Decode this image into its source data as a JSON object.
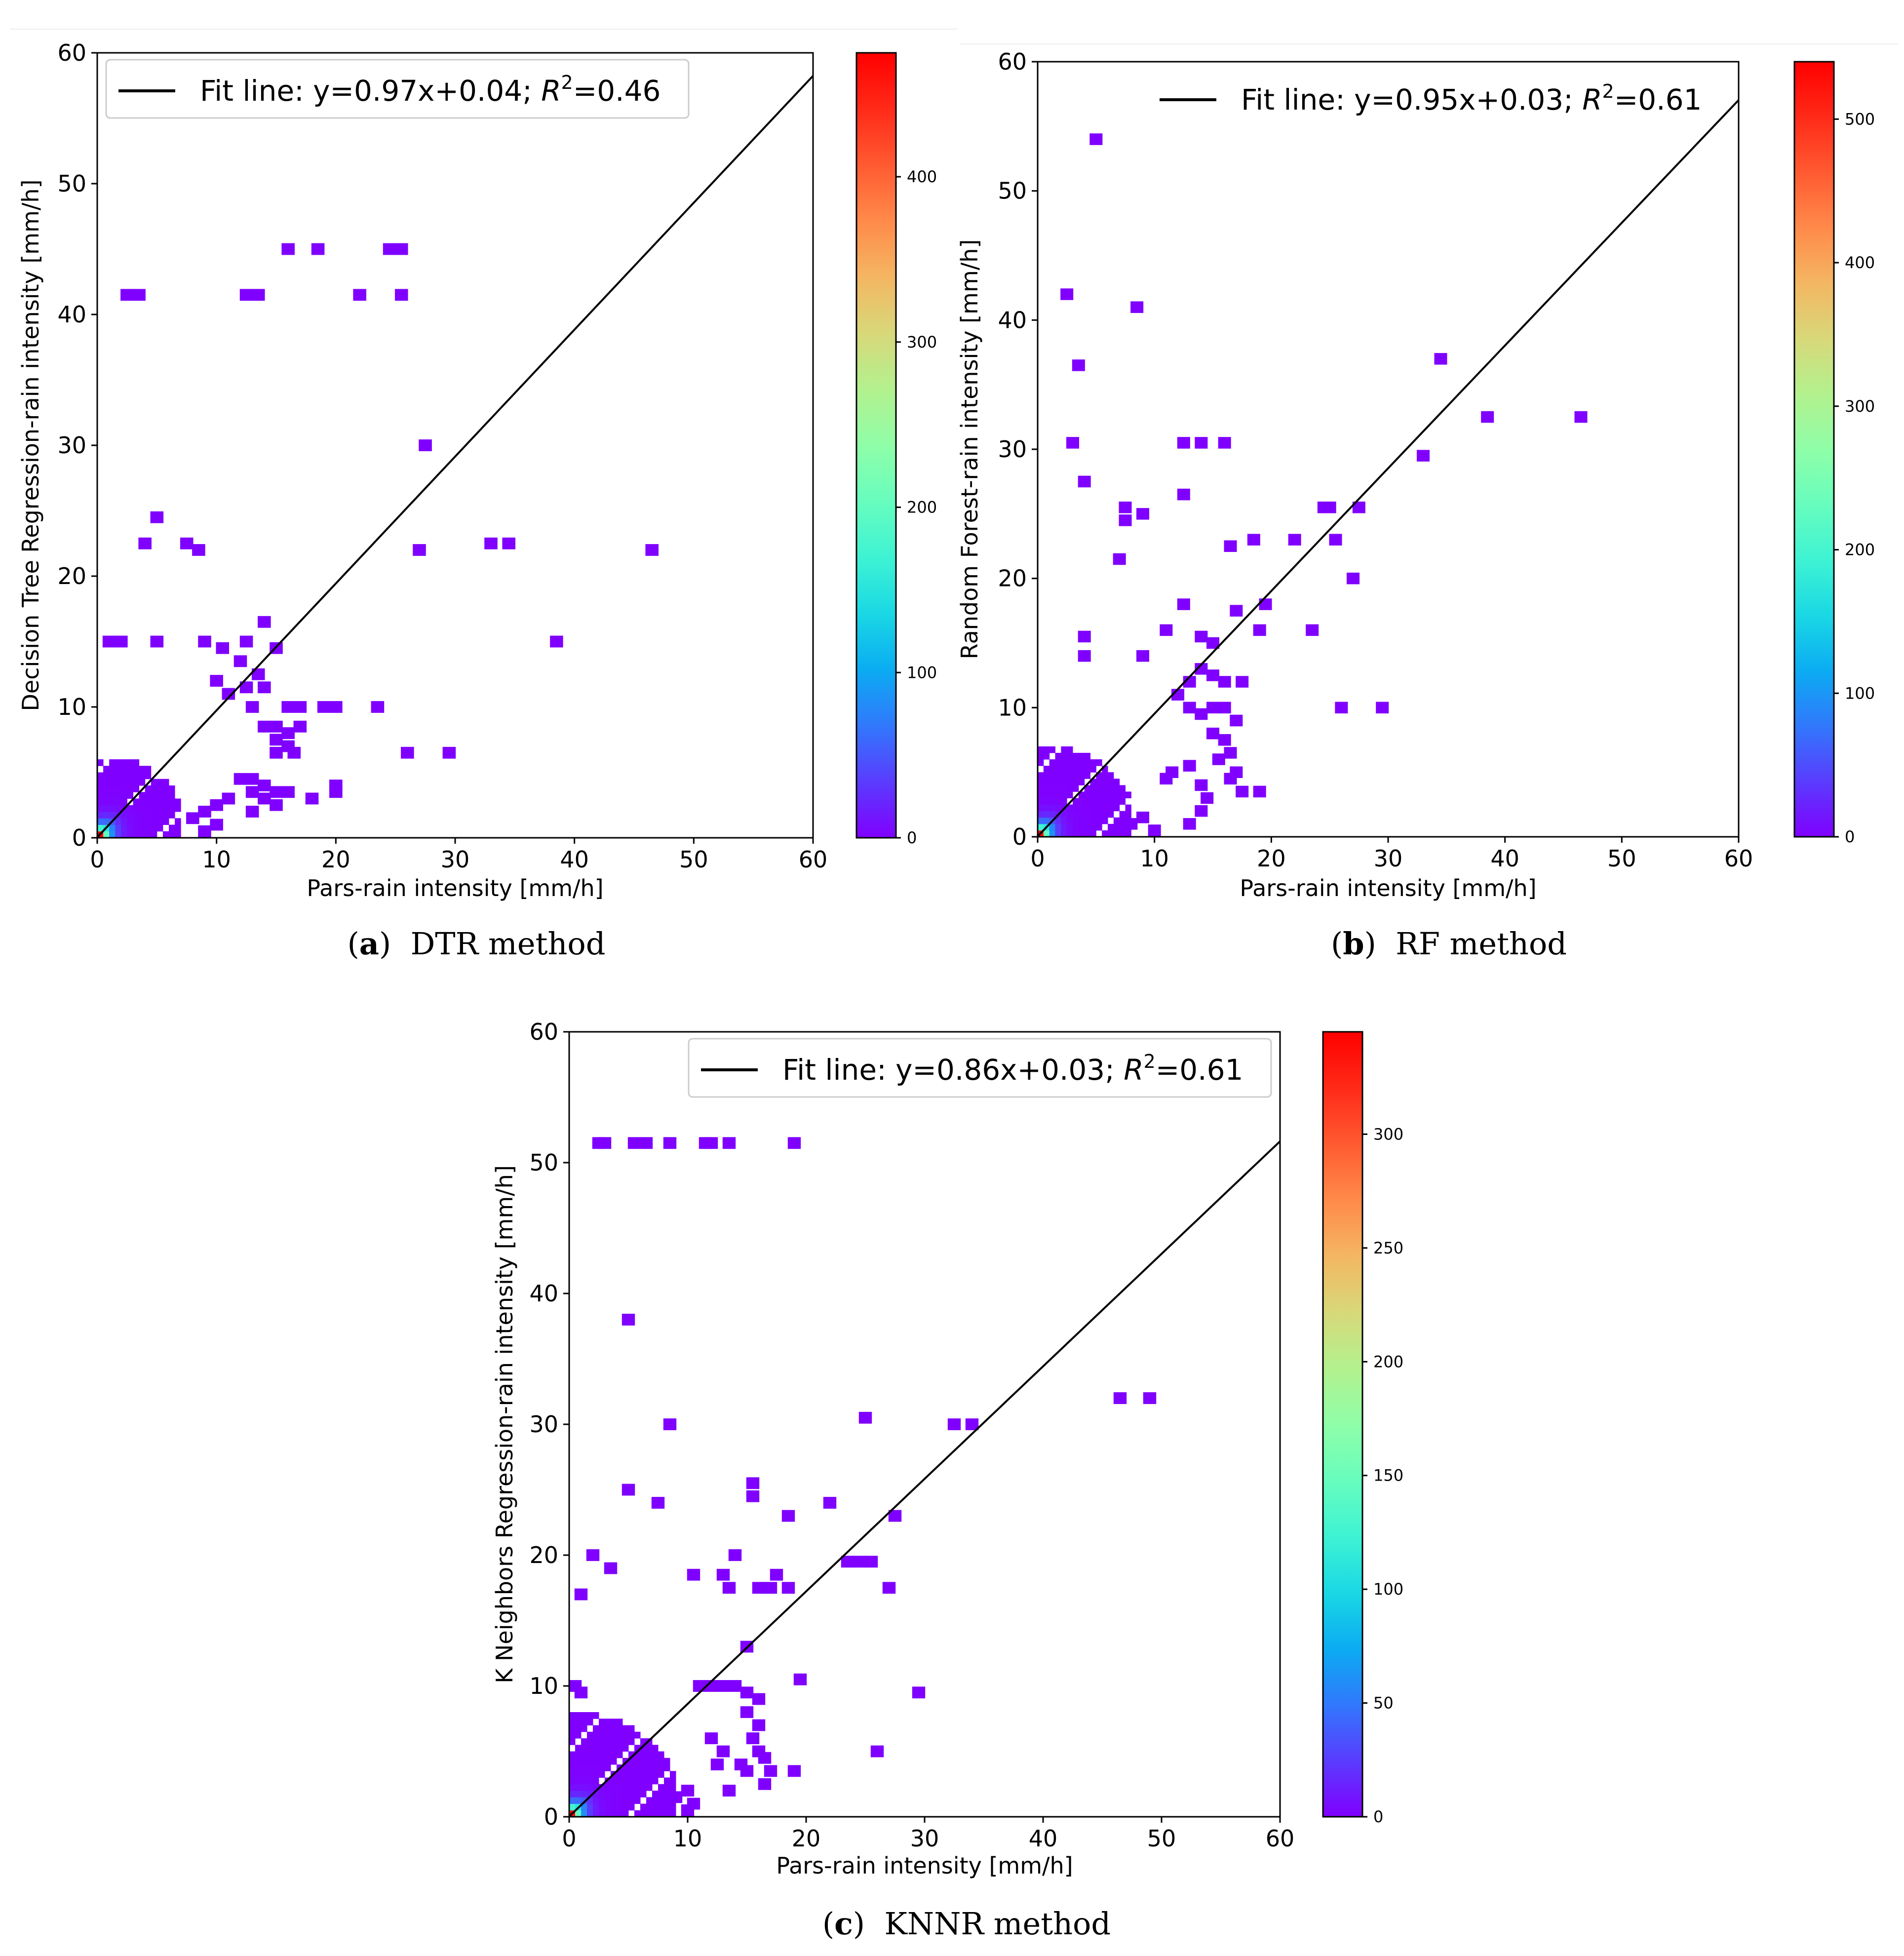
{
  "figure": {
    "colorbar_colors": [
      "#8000ff",
      "#5a3cfe",
      "#3178fc",
      "#0bacf2",
      "#1ad8e4",
      "#3ef3d3",
      "#67fdbe",
      "#8ffea8",
      "#b3f18e",
      "#d8d879",
      "#f4b662",
      "#ff8a4a",
      "#ff5a31",
      "#ff2a18",
      "#ff0000"
    ]
  },
  "chart_data": [
    {
      "id": "a",
      "type": "heatmap",
      "caption_letter": "a",
      "caption_text": "DTR method",
      "xlabel": "Pars-rain intensity [mm/h]",
      "ylabel": "Decision Tree Regression-rain intensity [mm/h]",
      "xlim": [
        0,
        60
      ],
      "ylim": [
        0,
        60
      ],
      "xticks": [
        "0",
        "10",
        "20",
        "30",
        "40",
        "50",
        "60"
      ],
      "yticks": [
        "0",
        "10",
        "20",
        "30",
        "40",
        "50",
        "60"
      ],
      "fit": {
        "slope": 0.97,
        "intercept": 0.04
      },
      "legend": {
        "prefix": "Fit line: y=0.97x+0.04; ",
        "r2_symbol": "R",
        "r2_sup": "2",
        "r2_value": "=0.46",
        "placement": "upper-left"
      },
      "colorbar": {
        "max": 475,
        "ticks": [
          0,
          100,
          200,
          300,
          400
        ],
        "tick_labels": [
          "0",
          "100",
          "200",
          "300",
          "400"
        ]
      },
      "dense_cluster": {
        "x_max": 7,
        "y_max": 6,
        "peak_count": 475
      },
      "sparse_points": [
        [
          2.5,
          41.5
        ],
        [
          3.5,
          41.5
        ],
        [
          12.5,
          41.5
        ],
        [
          13.5,
          41.5
        ],
        [
          22,
          41.5
        ],
        [
          25.5,
          41.5
        ],
        [
          16,
          45
        ],
        [
          18.5,
          45
        ],
        [
          24.5,
          45
        ],
        [
          25.5,
          45
        ],
        [
          27.5,
          30
        ],
        [
          5,
          24.5
        ],
        [
          4,
          22.5
        ],
        [
          7.5,
          22.5
        ],
        [
          8.5,
          22
        ],
        [
          27,
          22
        ],
        [
          33,
          22.5
        ],
        [
          34.5,
          22.5
        ],
        [
          46.5,
          22
        ],
        [
          38.5,
          15
        ],
        [
          1,
          15
        ],
        [
          2,
          15
        ],
        [
          5,
          15
        ],
        [
          9,
          15
        ],
        [
          10.5,
          14.5
        ],
        [
          12.5,
          15
        ],
        [
          14,
          16.5
        ],
        [
          15,
          14.5
        ],
        [
          12,
          13.5
        ],
        [
          13.5,
          12.5
        ],
        [
          12.5,
          11.5
        ],
        [
          10,
          12
        ],
        [
          11,
          11
        ],
        [
          14,
          11.5
        ],
        [
          13,
          10
        ],
        [
          16,
          10
        ],
        [
          17,
          10
        ],
        [
          19,
          10
        ],
        [
          23.5,
          10
        ],
        [
          20,
          10
        ],
        [
          14,
          8.5
        ],
        [
          15,
          8.5
        ],
        [
          16,
          8
        ],
        [
          17,
          8.5
        ],
        [
          15,
          7.5
        ],
        [
          16,
          7
        ],
        [
          15,
          6.5
        ],
        [
          16.5,
          6.5
        ],
        [
          26,
          6.5
        ],
        [
          29.5,
          6.5
        ],
        [
          13,
          4.5
        ],
        [
          14,
          4
        ],
        [
          13,
          3.5
        ],
        [
          14,
          3
        ],
        [
          15,
          3.5
        ],
        [
          16,
          3.5
        ],
        [
          20,
          4
        ],
        [
          20,
          3.5
        ],
        [
          18,
          3
        ],
        [
          15,
          2.5
        ],
        [
          13,
          2
        ],
        [
          9,
          2
        ],
        [
          8,
          1.5
        ],
        [
          9,
          0.5
        ],
        [
          10,
          1
        ],
        [
          12,
          4.5
        ],
        [
          11,
          3
        ],
        [
          10,
          2.5
        ]
      ]
    },
    {
      "id": "b",
      "type": "heatmap",
      "caption_letter": "b",
      "caption_text": "RF method",
      "xlabel": "Pars-rain intensity [mm/h]",
      "ylabel": "Random Forest-rain intensity [mm/h]",
      "xlim": [
        0,
        60
      ],
      "ylim": [
        0,
        60
      ],
      "xticks": [
        "0",
        "10",
        "20",
        "30",
        "40",
        "50",
        "60"
      ],
      "yticks": [
        "0",
        "10",
        "20",
        "30",
        "40",
        "50",
        "60"
      ],
      "fit": {
        "slope": 0.95,
        "intercept": 0.03
      },
      "legend": {
        "prefix": "Fit line: y=0.95x+0.03; ",
        "r2_symbol": "R",
        "r2_sup": "2",
        "r2_value": "=0.61",
        "placement": "upper-right"
      },
      "colorbar": {
        "max": 540,
        "ticks": [
          0,
          100,
          200,
          300,
          400,
          500
        ],
        "tick_labels": [
          "0",
          "100",
          "200",
          "300",
          "400",
          "500"
        ]
      },
      "dense_cluster": {
        "x_max": 8,
        "y_max": 8,
        "peak_count": 540
      },
      "sparse_points": [
        [
          5,
          54
        ],
        [
          2.5,
          42
        ],
        [
          8.5,
          41
        ],
        [
          3.5,
          36.5
        ],
        [
          34.5,
          37
        ],
        [
          38.5,
          32.5
        ],
        [
          46.5,
          32.5
        ],
        [
          3,
          30.5
        ],
        [
          12.5,
          30.5
        ],
        [
          14,
          30.5
        ],
        [
          16,
          30.5
        ],
        [
          33,
          29.5
        ],
        [
          4,
          27.5
        ],
        [
          12.5,
          26.5
        ],
        [
          7.5,
          25.5
        ],
        [
          7.5,
          24.5
        ],
        [
          9,
          25
        ],
        [
          25,
          25.5
        ],
        [
          27.5,
          25.5
        ],
        [
          24.5,
          25.5
        ],
        [
          16.5,
          22.5
        ],
        [
          18.5,
          23
        ],
        [
          22,
          23
        ],
        [
          25.5,
          23
        ],
        [
          7,
          21.5
        ],
        [
          27,
          20
        ],
        [
          17,
          17.5
        ],
        [
          19.5,
          18
        ],
        [
          19,
          16
        ],
        [
          12.5,
          18
        ],
        [
          11,
          16
        ],
        [
          23.5,
          16
        ],
        [
          26,
          10
        ],
        [
          29.5,
          10
        ],
        [
          9,
          14
        ],
        [
          14,
          15.5
        ],
        [
          15,
          15
        ],
        [
          4,
          15.5
        ],
        [
          4,
          14
        ],
        [
          14,
          13
        ],
        [
          15,
          12.5
        ],
        [
          16,
          12
        ],
        [
          17.5,
          12
        ],
        [
          13,
          12
        ],
        [
          12,
          11
        ],
        [
          13,
          10
        ],
        [
          14,
          9.5
        ],
        [
          15,
          10
        ],
        [
          16,
          10
        ],
        [
          17,
          9
        ],
        [
          15,
          8
        ],
        [
          16,
          7.5
        ],
        [
          16.5,
          6.5
        ],
        [
          15.5,
          6
        ],
        [
          17,
          5
        ],
        [
          16.5,
          4.5
        ],
        [
          14,
          4
        ],
        [
          14.5,
          3
        ],
        [
          14,
          2
        ],
        [
          13,
          1
        ],
        [
          17.5,
          3.5
        ],
        [
          19,
          3.5
        ],
        [
          13,
          5.5
        ],
        [
          11.5,
          5
        ],
        [
          11,
          4.5
        ],
        [
          8,
          1
        ],
        [
          9,
          1.5
        ],
        [
          10,
          0.5
        ]
      ]
    },
    {
      "id": "c",
      "type": "heatmap",
      "caption_letter": "c",
      "caption_text": "KNNR method",
      "xlabel": "Pars-rain intensity [mm/h]",
      "ylabel": "K Neighbors Regression-rain intensity [mm/h]",
      "xlim": [
        0,
        60
      ],
      "ylim": [
        0,
        60
      ],
      "xticks": [
        "0",
        "10",
        "20",
        "30",
        "40",
        "50",
        "60"
      ],
      "yticks": [
        "0",
        "10",
        "20",
        "30",
        "40",
        "50",
        "60"
      ],
      "fit": {
        "slope": 0.86,
        "intercept": 0.03
      },
      "legend": {
        "prefix": "Fit line: y=0.86x+0.03; ",
        "r2_symbol": "R",
        "r2_sup": "2",
        "r2_value": "=0.61",
        "placement": "upper-right"
      },
      "colorbar": {
        "max": 345,
        "ticks": [
          0,
          50,
          100,
          150,
          200,
          250,
          300
        ],
        "tick_labels": [
          "0",
          "50",
          "100",
          "150",
          "200",
          "250",
          "300"
        ]
      },
      "dense_cluster": {
        "x_max": 9,
        "y_max": 8,
        "peak_count": 345
      },
      "sparse_points": [
        [
          2.5,
          51.5
        ],
        [
          3,
          51.5
        ],
        [
          5.5,
          51.5
        ],
        [
          6.5,
          51.5
        ],
        [
          8.5,
          51.5
        ],
        [
          11.5,
          51.5
        ],
        [
          12,
          51.5
        ],
        [
          13.5,
          51.5
        ],
        [
          19,
          51.5
        ],
        [
          5,
          38
        ],
        [
          8.5,
          30
        ],
        [
          25,
          30.5
        ],
        [
          32.5,
          30
        ],
        [
          34,
          30
        ],
        [
          46.5,
          32
        ],
        [
          49,
          32
        ],
        [
          5,
          25
        ],
        [
          7.5,
          24
        ],
        [
          15.5,
          25.5
        ],
        [
          15.5,
          24.5
        ],
        [
          18.5,
          23
        ],
        [
          22,
          24
        ],
        [
          27.5,
          23
        ],
        [
          2,
          20
        ],
        [
          3.5,
          19
        ],
        [
          1,
          17
        ],
        [
          10.5,
          18.5
        ],
        [
          13,
          18.5
        ],
        [
          14,
          20
        ],
        [
          13.5,
          17.5
        ],
        [
          16,
          17.5
        ],
        [
          17,
          17.5
        ],
        [
          17.5,
          18.5
        ],
        [
          18.5,
          17.5
        ],
        [
          23.5,
          19.5
        ],
        [
          24.5,
          19.5
        ],
        [
          25.5,
          19.5
        ],
        [
          27,
          17.5
        ],
        [
          15,
          13
        ],
        [
          19.5,
          10.5
        ],
        [
          29.5,
          9.5
        ],
        [
          26,
          5
        ],
        [
          0.5,
          10
        ],
        [
          1,
          9.5
        ],
        [
          11,
          10
        ],
        [
          12,
          10
        ],
        [
          13,
          10
        ],
        [
          14,
          10
        ],
        [
          15,
          9.5
        ],
        [
          16,
          9
        ],
        [
          15,
          8
        ],
        [
          16,
          7
        ],
        [
          15.5,
          6
        ],
        [
          16,
          5
        ],
        [
          16.5,
          4.5
        ],
        [
          14.5,
          4
        ],
        [
          15,
          3.5
        ],
        [
          17,
          3.5
        ],
        [
          19,
          3.5
        ],
        [
          16.5,
          2.5
        ],
        [
          13.5,
          2
        ],
        [
          10,
          2
        ],
        [
          9,
          1.5
        ],
        [
          10,
          0.5
        ],
        [
          10.5,
          1
        ],
        [
          12,
          6
        ],
        [
          13,
          5
        ],
        [
          12.5,
          4
        ]
      ]
    }
  ]
}
